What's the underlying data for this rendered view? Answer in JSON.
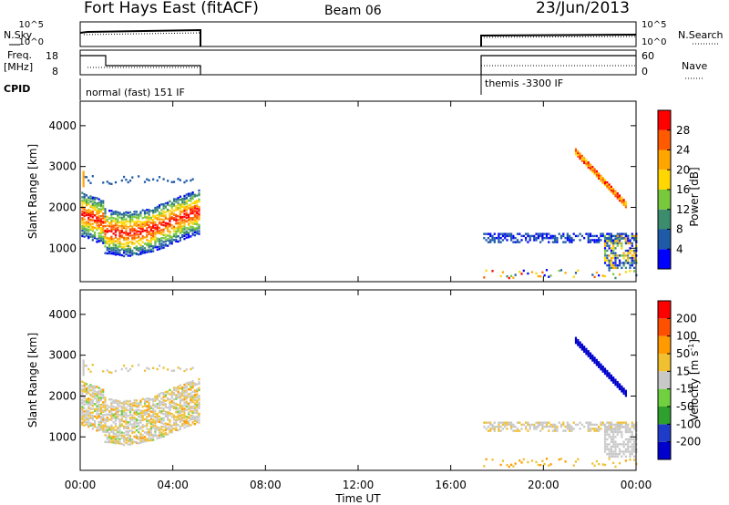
{
  "header": {
    "station": "Fort Hays East (fitACF)",
    "beam": "Beam 06",
    "date": "23/Jun/2013"
  },
  "top_panels": {
    "nsky_label": "N.Sky",
    "nsearch_label": "N.Search",
    "freq_label_1": "Freq.",
    "freq_label_2": "[MHz]",
    "nave_label": "Nave",
    "cpid_label": "CPID",
    "noise_left_ticks": [
      "10^5",
      "10^0"
    ],
    "noise_right_ticks": [
      "10^5",
      "10^0"
    ],
    "freq_left_ticks": [
      "18",
      "8"
    ],
    "nave_right_ticks": [
      "60",
      "0"
    ],
    "cpid_segments": [
      {
        "label": "normal (fast) 151 IF",
        "start_h": 0.0,
        "end_h": 5.1
      },
      {
        "label": "themis -3300 IF",
        "start_h": 17.4,
        "end_h": 24.0
      }
    ]
  },
  "chart_data": [
    {
      "type": "heatmap",
      "name": "power",
      "ylabel": "Slant Range [km]",
      "xlabel": "",
      "xlim": [
        0,
        24
      ],
      "ylim": [
        180,
        4600
      ],
      "yticks": [
        "1000",
        "2000",
        "3000",
        "4000"
      ],
      "colorbar": {
        "label": "Power [dB]",
        "ticks": [
          "4",
          "8",
          "12",
          "16",
          "20",
          "24",
          "28"
        ],
        "colors": [
          "#0000ff",
          "#1e5aa8",
          "#3c8c6e",
          "#78c83c",
          "#ffd700",
          "#ffa500",
          "#ff5a00",
          "#ff0000"
        ]
      },
      "regions": [
        {
          "from_h": 0.1,
          "to_h": 5.1,
          "range_km": [
            1100,
            2200
          ],
          "level": "high"
        },
        {
          "from_h": 17.4,
          "to_h": 24.0,
          "range_km": [
            800,
            3500
          ],
          "level": "mixed"
        }
      ]
    },
    {
      "type": "heatmap",
      "name": "velocity",
      "ylabel": "Slant Range [km]",
      "xlabel": "Time UT",
      "xlim": [
        0,
        24
      ],
      "ylim": [
        180,
        4600
      ],
      "yticks": [
        "1000",
        "2000",
        "3000",
        "4000"
      ],
      "xticks": [
        "00:00",
        "04:00",
        "08:00",
        "12:00",
        "16:00",
        "20:00",
        "00:00"
      ],
      "colorbar": {
        "label": "Velocity [m s",
        "label_exp": "-1",
        "label_end": "]",
        "ticks": [
          "200",
          "100",
          "50",
          "15",
          "-15",
          "-50",
          "-100",
          "-200"
        ],
        "colors": [
          "#0000cc",
          "#1e3cc8",
          "#2ea02e",
          "#70d040",
          "#c8c8c8",
          "#f0c030",
          "#ff9a00",
          "#ff5000",
          "#ff0000"
        ]
      }
    }
  ]
}
